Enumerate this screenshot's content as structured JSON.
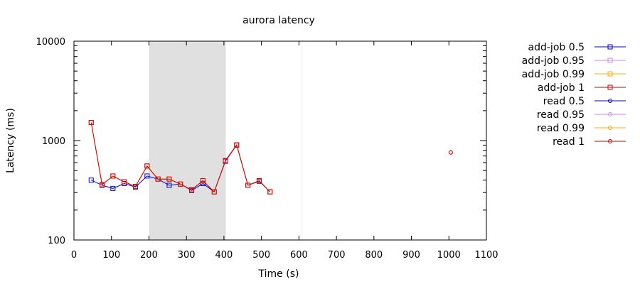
{
  "chart_data": {
    "type": "line",
    "title": "aurora latency",
    "xlabel": "Time (s)",
    "ylabel": "Latency (ms)",
    "xlim": [
      0,
      1100
    ],
    "ylim": [
      100,
      10000
    ],
    "yscale": "log",
    "x_ticks": [
      "0",
      "100",
      "200",
      "300",
      "400",
      "500",
      "600",
      "700",
      "800",
      "900",
      "1000",
      "1100"
    ],
    "y_ticks": [
      "100",
      "1000",
      "10000"
    ],
    "grid": false,
    "legend_position": "outside-right",
    "shaded_regions": [
      {
        "x_start": 200,
        "x_end": 405,
        "color": "#e0e0e0"
      }
    ],
    "vertical_lines": [
      {
        "x": 608,
        "color": "#f0f0f0"
      }
    ],
    "series": [
      {
        "name": "add-job 0.5",
        "color": "#0000cc",
        "marker": "square",
        "x": [
          46,
          75,
          104,
          134,
          164,
          195,
          224,
          254,
          284,
          314,
          344,
          374,
          404,
          434,
          464,
          494,
          523
        ],
        "y": [
          400,
          355,
          330,
          370,
          340,
          440,
          410,
          355,
          365,
          315,
          370,
          305,
          620,
          900,
          355,
          390,
          305
        ]
      },
      {
        "name": "add-job 0.95",
        "color": "#cc88dd",
        "marker": "square",
        "x": [
          46,
          75,
          104,
          134,
          164,
          195,
          224,
          254,
          284,
          314,
          344,
          374,
          404,
          434,
          464,
          494,
          523
        ],
        "y": [
          1520,
          360,
          440,
          385,
          345,
          555,
          410,
          410,
          365,
          320,
          395,
          305,
          630,
          905,
          355,
          395,
          305
        ]
      },
      {
        "name": "add-job 0.99",
        "color": "#ffaa00",
        "marker": "square",
        "x": [
          46,
          75,
          104,
          134,
          164,
          195,
          224,
          254,
          284,
          314,
          344,
          374,
          404,
          434,
          464,
          494,
          523
        ],
        "y": [
          1520,
          360,
          440,
          385,
          345,
          555,
          410,
          410,
          365,
          320,
          395,
          305,
          630,
          905,
          355,
          395,
          305
        ]
      },
      {
        "name": "add-job 1",
        "color": "#cc0000",
        "marker": "square",
        "x": [
          46,
          75,
          104,
          134,
          164,
          195,
          224,
          254,
          284,
          314,
          344,
          374,
          404,
          434,
          464,
          494,
          523
        ],
        "y": [
          1520,
          360,
          440,
          385,
          345,
          555,
          410,
          410,
          365,
          320,
          395,
          305,
          630,
          905,
          355,
          395,
          305
        ]
      },
      {
        "name": "read 0.5",
        "color": "#0000cc",
        "marker": "circle",
        "x": [
          1005
        ],
        "y": [
          760
        ]
      },
      {
        "name": "read 0.95",
        "color": "#cc88dd",
        "marker": "circle",
        "x": [
          1005
        ],
        "y": [
          760
        ]
      },
      {
        "name": "read 0.99",
        "color": "#ffaa00",
        "marker": "circle",
        "x": [
          1005
        ],
        "y": [
          760
        ]
      },
      {
        "name": "read 1",
        "color": "#cc0000",
        "marker": "circle",
        "x": [
          1005
        ],
        "y": [
          760
        ]
      }
    ]
  }
}
